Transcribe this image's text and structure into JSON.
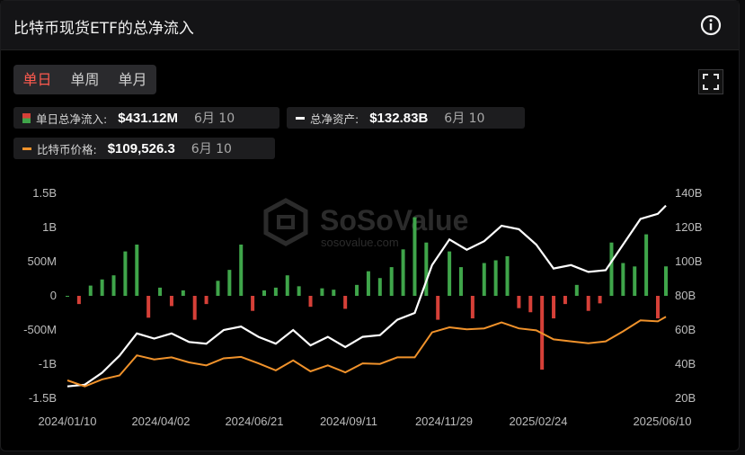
{
  "header": {
    "title": "比特币现货ETF的总净流入"
  },
  "tabs": [
    {
      "label": "单日",
      "active": true
    },
    {
      "label": "单周",
      "active": false
    },
    {
      "label": "单月",
      "active": false
    }
  ],
  "legend": {
    "inflow": {
      "label": "单日总净流入:",
      "value": "$431.12M",
      "date": "6月 10"
    },
    "assets": {
      "label": "总净资产:",
      "value": "$132.83B",
      "date": "6月 10"
    },
    "price": {
      "label": "比特币价格:",
      "value": "$109,526.3",
      "date": "6月 10"
    }
  },
  "watermark": {
    "name": "SoSoValue",
    "url": "sosovalue.com"
  },
  "colors": {
    "inflow_positive": "#3fa54a",
    "inflow_negative": "#d64038",
    "assets_line": "#ffffff",
    "price_line": "#f0922b",
    "active_tab": "#ff5a4e"
  },
  "chart_data": {
    "type": "bar",
    "x_ticks": [
      "2024/01/10",
      "2024/04/02",
      "2024/06/21",
      "2024/09/11",
      "2024/11/29",
      "2025/02/24",
      "2025/06/10"
    ],
    "y_left_ticks": [
      "1.5B",
      "1B",
      "500M",
      "0",
      "-500M",
      "-1B",
      "-1.5B"
    ],
    "y_right_ticks": [
      "140B",
      "120B",
      "100B",
      "80B",
      "60B",
      "40B",
      "20B"
    ],
    "y_left_range": [
      -1500000000,
      1500000000
    ],
    "y_right_range": [
      20000000000,
      140000000000
    ],
    "series": [
      {
        "name": "单日总净流入",
        "kind": "bar",
        "axis": "left",
        "points": [
          [
            "2024/01/10",
            0
          ],
          [
            "2024/01/20",
            -120
          ],
          [
            "2024/01/30",
            150
          ],
          [
            "2024/02/09",
            240
          ],
          [
            "2024/02/19",
            300
          ],
          [
            "2024/02/29",
            650
          ],
          [
            "2024/03/10",
            750
          ],
          [
            "2024/03/20",
            -320
          ],
          [
            "2024/03/30",
            120
          ],
          [
            "2024/04/09",
            -150
          ],
          [
            "2024/04/19",
            80
          ],
          [
            "2024/04/29",
            -350
          ],
          [
            "2024/05/09",
            -120
          ],
          [
            "2024/05/19",
            220
          ],
          [
            "2024/05/29",
            380
          ],
          [
            "2024/06/08",
            750
          ],
          [
            "2024/06/18",
            -220
          ],
          [
            "2024/06/28",
            80
          ],
          [
            "2024/07/08",
            120
          ],
          [
            "2024/07/18",
            300
          ],
          [
            "2024/07/28",
            140
          ],
          [
            "2024/08/07",
            -160
          ],
          [
            "2024/08/17",
            110
          ],
          [
            "2024/08/27",
            90
          ],
          [
            "2024/09/06",
            -190
          ],
          [
            "2024/09/16",
            160
          ],
          [
            "2024/09/26",
            360
          ],
          [
            "2024/10/06",
            260
          ],
          [
            "2024/10/16",
            420
          ],
          [
            "2024/10/26",
            680
          ],
          [
            "2024/11/05",
            1150
          ],
          [
            "2024/11/15",
            780
          ],
          [
            "2024/11/25",
            -350
          ],
          [
            "2024/12/05",
            650
          ],
          [
            "2024/12/15",
            420
          ],
          [
            "2024/12/25",
            -330
          ],
          [
            "2025/01/04",
            480
          ],
          [
            "2025/01/14",
            520
          ],
          [
            "2025/01/24",
            580
          ],
          [
            "2025/02/03",
            -180
          ],
          [
            "2025/02/13",
            -240
          ],
          [
            "2025/02/23",
            -1080
          ],
          [
            "2025/03/05",
            -330
          ],
          [
            "2025/03/15",
            -120
          ],
          [
            "2025/03/25",
            160
          ],
          [
            "2025/04/04",
            -220
          ],
          [
            "2025/04/14",
            -110
          ],
          [
            "2025/04/24",
            780
          ],
          [
            "2025/05/04",
            480
          ],
          [
            "2025/05/14",
            430
          ],
          [
            "2025/05/24",
            900
          ],
          [
            "2025/06/03",
            -330
          ],
          [
            "2025/06/10",
            431.12
          ]
        ],
        "unit": "M"
      },
      {
        "name": "总净资产",
        "kind": "line",
        "axis": "right",
        "points": [
          [
            "2024/01/10",
            27
          ],
          [
            "2024/01/25",
            28
          ],
          [
            "2024/02/09",
            35
          ],
          [
            "2024/02/24",
            45
          ],
          [
            "2024/03/10",
            58
          ],
          [
            "2024/03/25",
            55
          ],
          [
            "2024/04/09",
            58
          ],
          [
            "2024/04/24",
            53
          ],
          [
            "2024/05/09",
            52
          ],
          [
            "2024/05/24",
            60
          ],
          [
            "2024/06/08",
            62
          ],
          [
            "2024/06/23",
            56
          ],
          [
            "2024/07/08",
            52
          ],
          [
            "2024/07/23",
            60
          ],
          [
            "2024/08/07",
            51
          ],
          [
            "2024/08/22",
            56
          ],
          [
            "2024/09/06",
            50
          ],
          [
            "2024/09/21",
            56
          ],
          [
            "2024/10/06",
            57
          ],
          [
            "2024/10/21",
            66
          ],
          [
            "2024/11/05",
            70
          ],
          [
            "2024/11/20",
            98
          ],
          [
            "2024/12/05",
            113
          ],
          [
            "2024/12/20",
            107
          ],
          [
            "2025/01/04",
            112
          ],
          [
            "2025/01/19",
            121
          ],
          [
            "2025/02/03",
            119
          ],
          [
            "2025/02/18",
            110
          ],
          [
            "2025/03/05",
            96
          ],
          [
            "2025/03/20",
            98
          ],
          [
            "2025/04/04",
            94
          ],
          [
            "2025/04/19",
            95
          ],
          [
            "2025/05/04",
            110
          ],
          [
            "2025/05/19",
            125
          ],
          [
            "2025/06/03",
            128
          ],
          [
            "2025/06/10",
            132.83
          ]
        ]
      },
      {
        "name": "比特币价格",
        "kind": "line",
        "axis": "right",
        "points": [
          [
            "2024/01/10",
            46000
          ],
          [
            "2024/01/25",
            40000
          ],
          [
            "2024/02/09",
            47000
          ],
          [
            "2024/02/24",
            51000
          ],
          [
            "2024/03/10",
            71000
          ],
          [
            "2024/03/25",
            67000
          ],
          [
            "2024/04/09",
            69000
          ],
          [
            "2024/04/24",
            64000
          ],
          [
            "2024/05/09",
            61000
          ],
          [
            "2024/05/24",
            68000
          ],
          [
            "2024/06/08",
            69500
          ],
          [
            "2024/06/23",
            63000
          ],
          [
            "2024/07/08",
            56000
          ],
          [
            "2024/07/23",
            66000
          ],
          [
            "2024/08/07",
            55000
          ],
          [
            "2024/08/22",
            61000
          ],
          [
            "2024/09/06",
            54000
          ],
          [
            "2024/09/21",
            63000
          ],
          [
            "2024/10/06",
            62500
          ],
          [
            "2024/10/21",
            69000
          ],
          [
            "2024/11/05",
            69000
          ],
          [
            "2024/11/20",
            94000
          ],
          [
            "2024/12/05",
            99000
          ],
          [
            "2024/12/20",
            97000
          ],
          [
            "2025/01/04",
            98000
          ],
          [
            "2025/01/19",
            104000
          ],
          [
            "2025/02/03",
            98000
          ],
          [
            "2025/02/18",
            96000
          ],
          [
            "2025/03/05",
            87000
          ],
          [
            "2025/03/20",
            85000
          ],
          [
            "2025/04/04",
            83000
          ],
          [
            "2025/04/19",
            85000
          ],
          [
            "2025/05/04",
            95000
          ],
          [
            "2025/05/19",
            106000
          ],
          [
            "2025/06/03",
            105000
          ],
          [
            "2025/06/10",
            109526.3
          ]
        ]
      }
    ]
  }
}
